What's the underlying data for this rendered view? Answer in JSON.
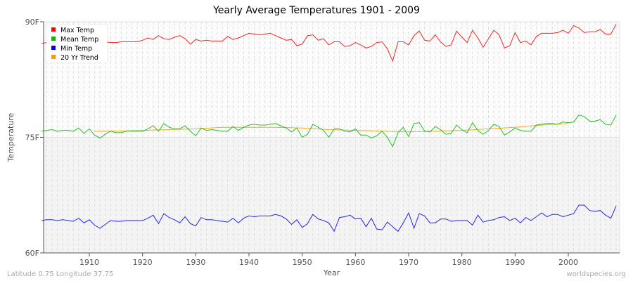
{
  "chart_data": {
    "type": "line",
    "title": "Yearly Average Temperatures 1901 - 2009",
    "xlabel": "Year",
    "ylabel": "Temperature",
    "xlim": [
      1901,
      2009
    ],
    "ylim": [
      60,
      90
    ],
    "yticks": [
      {
        "value": 60,
        "label": "60F"
      },
      {
        "value": 75,
        "label": "75F"
      },
      {
        "value": 90,
        "label": "90F"
      }
    ],
    "xticks": [
      1910,
      1920,
      1930,
      1940,
      1950,
      1960,
      1970,
      1980,
      1990,
      2000
    ],
    "grid": true,
    "legend_position": "top-left",
    "x_start": 1901,
    "series": [
      {
        "name": "Max Temp",
        "color": "#ff0000",
        "values": [
          87.2,
          87.3,
          87.1,
          87.2,
          87.3,
          87.2,
          87.0,
          87.3,
          87.2,
          87.1,
          86.8,
          87.1,
          87.4,
          87.3,
          87.3,
          87.4,
          87.4,
          87.4,
          87.4,
          87.6,
          87.9,
          87.7,
          88.2,
          87.8,
          87.7,
          88.0,
          88.2,
          87.8,
          87.1,
          87.7,
          87.5,
          87.6,
          87.5,
          87.5,
          87.5,
          88.1,
          87.7,
          87.9,
          88.2,
          88.5,
          88.4,
          88.3,
          88.4,
          88.5,
          88.2,
          87.9,
          87.6,
          87.7,
          86.9,
          87.1,
          88.2,
          88.3,
          87.6,
          87.8,
          87.0,
          87.4,
          87.4,
          86.8,
          86.9,
          87.3,
          87.0,
          86.6,
          86.8,
          87.3,
          87.4,
          86.5,
          84.9,
          87.4,
          87.4,
          87.0,
          88.2,
          88.8,
          87.6,
          87.5,
          88.3,
          87.4,
          86.8,
          87.0,
          88.8,
          88.0,
          87.3,
          88.9,
          87.9,
          86.7,
          87.8,
          88.9,
          88.3,
          86.6,
          86.9,
          88.6,
          87.3,
          87.5,
          87.0,
          88.1,
          88.5,
          88.5,
          88.5,
          88.6,
          88.9,
          88.5,
          89.5,
          89.2,
          88.6,
          88.7,
          88.7,
          89.0,
          88.4,
          88.4,
          89.7
        ]
      },
      {
        "name": "Mean Temp",
        "color": "#00bb00",
        "values": [
          75.8,
          75.9,
          76.0,
          75.8,
          75.9,
          75.9,
          75.8,
          76.2,
          75.5,
          76.1,
          75.3,
          74.9,
          75.4,
          75.8,
          75.6,
          75.6,
          75.8,
          75.8,
          75.8,
          75.8,
          76.1,
          76.5,
          75.8,
          76.8,
          76.3,
          76.1,
          76.1,
          76.5,
          75.8,
          75.2,
          76.2,
          75.9,
          76.0,
          75.9,
          75.8,
          75.8,
          76.4,
          75.9,
          76.3,
          76.6,
          76.7,
          76.6,
          76.6,
          76.7,
          76.8,
          76.5,
          76.2,
          75.7,
          76.2,
          75.0,
          75.4,
          76.7,
          76.3,
          75.9,
          75.0,
          76.1,
          76.1,
          75.8,
          75.7,
          76.1,
          75.3,
          75.3,
          74.9,
          75.2,
          75.8,
          75.0,
          73.8,
          75.6,
          76.3,
          75.1,
          76.8,
          76.9,
          75.8,
          75.7,
          76.4,
          76.0,
          75.4,
          75.5,
          76.6,
          76.0,
          75.6,
          76.9,
          75.9,
          75.4,
          75.9,
          76.7,
          76.4,
          75.3,
          75.7,
          76.2,
          75.9,
          75.8,
          75.8,
          76.6,
          76.7,
          76.8,
          76.8,
          76.7,
          77.0,
          76.9,
          77.0,
          77.9,
          77.7,
          77.1,
          77.1,
          77.3,
          76.7,
          76.6,
          77.9
        ]
      },
      {
        "name": "Min Temp",
        "color": "#0000ff",
        "values": [
          64.2,
          64.3,
          64.3,
          64.2,
          64.3,
          64.2,
          64.1,
          64.5,
          63.9,
          64.3,
          63.6,
          63.2,
          63.7,
          64.2,
          64.1,
          64.1,
          64.2,
          64.2,
          64.2,
          64.2,
          64.5,
          64.9,
          63.8,
          65.1,
          64.6,
          64.3,
          63.9,
          64.7,
          63.8,
          63.5,
          64.6,
          64.3,
          64.3,
          64.2,
          64.1,
          64.0,
          64.5,
          63.9,
          64.5,
          64.8,
          64.7,
          64.8,
          64.8,
          64.8,
          65.0,
          64.8,
          64.4,
          63.7,
          64.3,
          63.3,
          63.8,
          65.0,
          64.4,
          64.2,
          63.9,
          62.8,
          64.6,
          64.7,
          64.9,
          64.4,
          64.5,
          63.4,
          64.5,
          63.1,
          63.0,
          64.0,
          63.4,
          62.8,
          63.9,
          65.2,
          63.2,
          65.1,
          64.8,
          63.9,
          63.9,
          64.4,
          64.4,
          64.1,
          64.2,
          64.2,
          64.2,
          63.6,
          64.9,
          64.0,
          64.2,
          64.3,
          64.6,
          64.7,
          64.2,
          64.5,
          63.9,
          64.6,
          64.2,
          64.7,
          65.2,
          64.7,
          65.0,
          65.0,
          64.7,
          64.9,
          65.1,
          66.2,
          66.2,
          65.5,
          65.4,
          65.5,
          64.9,
          64.5,
          66.1
        ]
      },
      {
        "name": "20 Yr Trend",
        "color": "#ff9900",
        "x": [
          1911,
          1915,
          1920,
          1925,
          1930,
          1935,
          1940,
          1945,
          1950,
          1955,
          1960,
          1965,
          1970,
          1975,
          1980,
          1985,
          1990,
          1995,
          2000
        ],
        "values": [
          75.8,
          75.8,
          75.9,
          76.0,
          76.1,
          76.3,
          76.3,
          76.3,
          76.2,
          76.0,
          75.9,
          75.8,
          75.7,
          75.8,
          75.9,
          76.1,
          76.3,
          76.6,
          76.8
        ]
      }
    ]
  },
  "footer": {
    "location": "Latitude 0.75 Longitude 37.75",
    "source": "worldspecies.org"
  }
}
